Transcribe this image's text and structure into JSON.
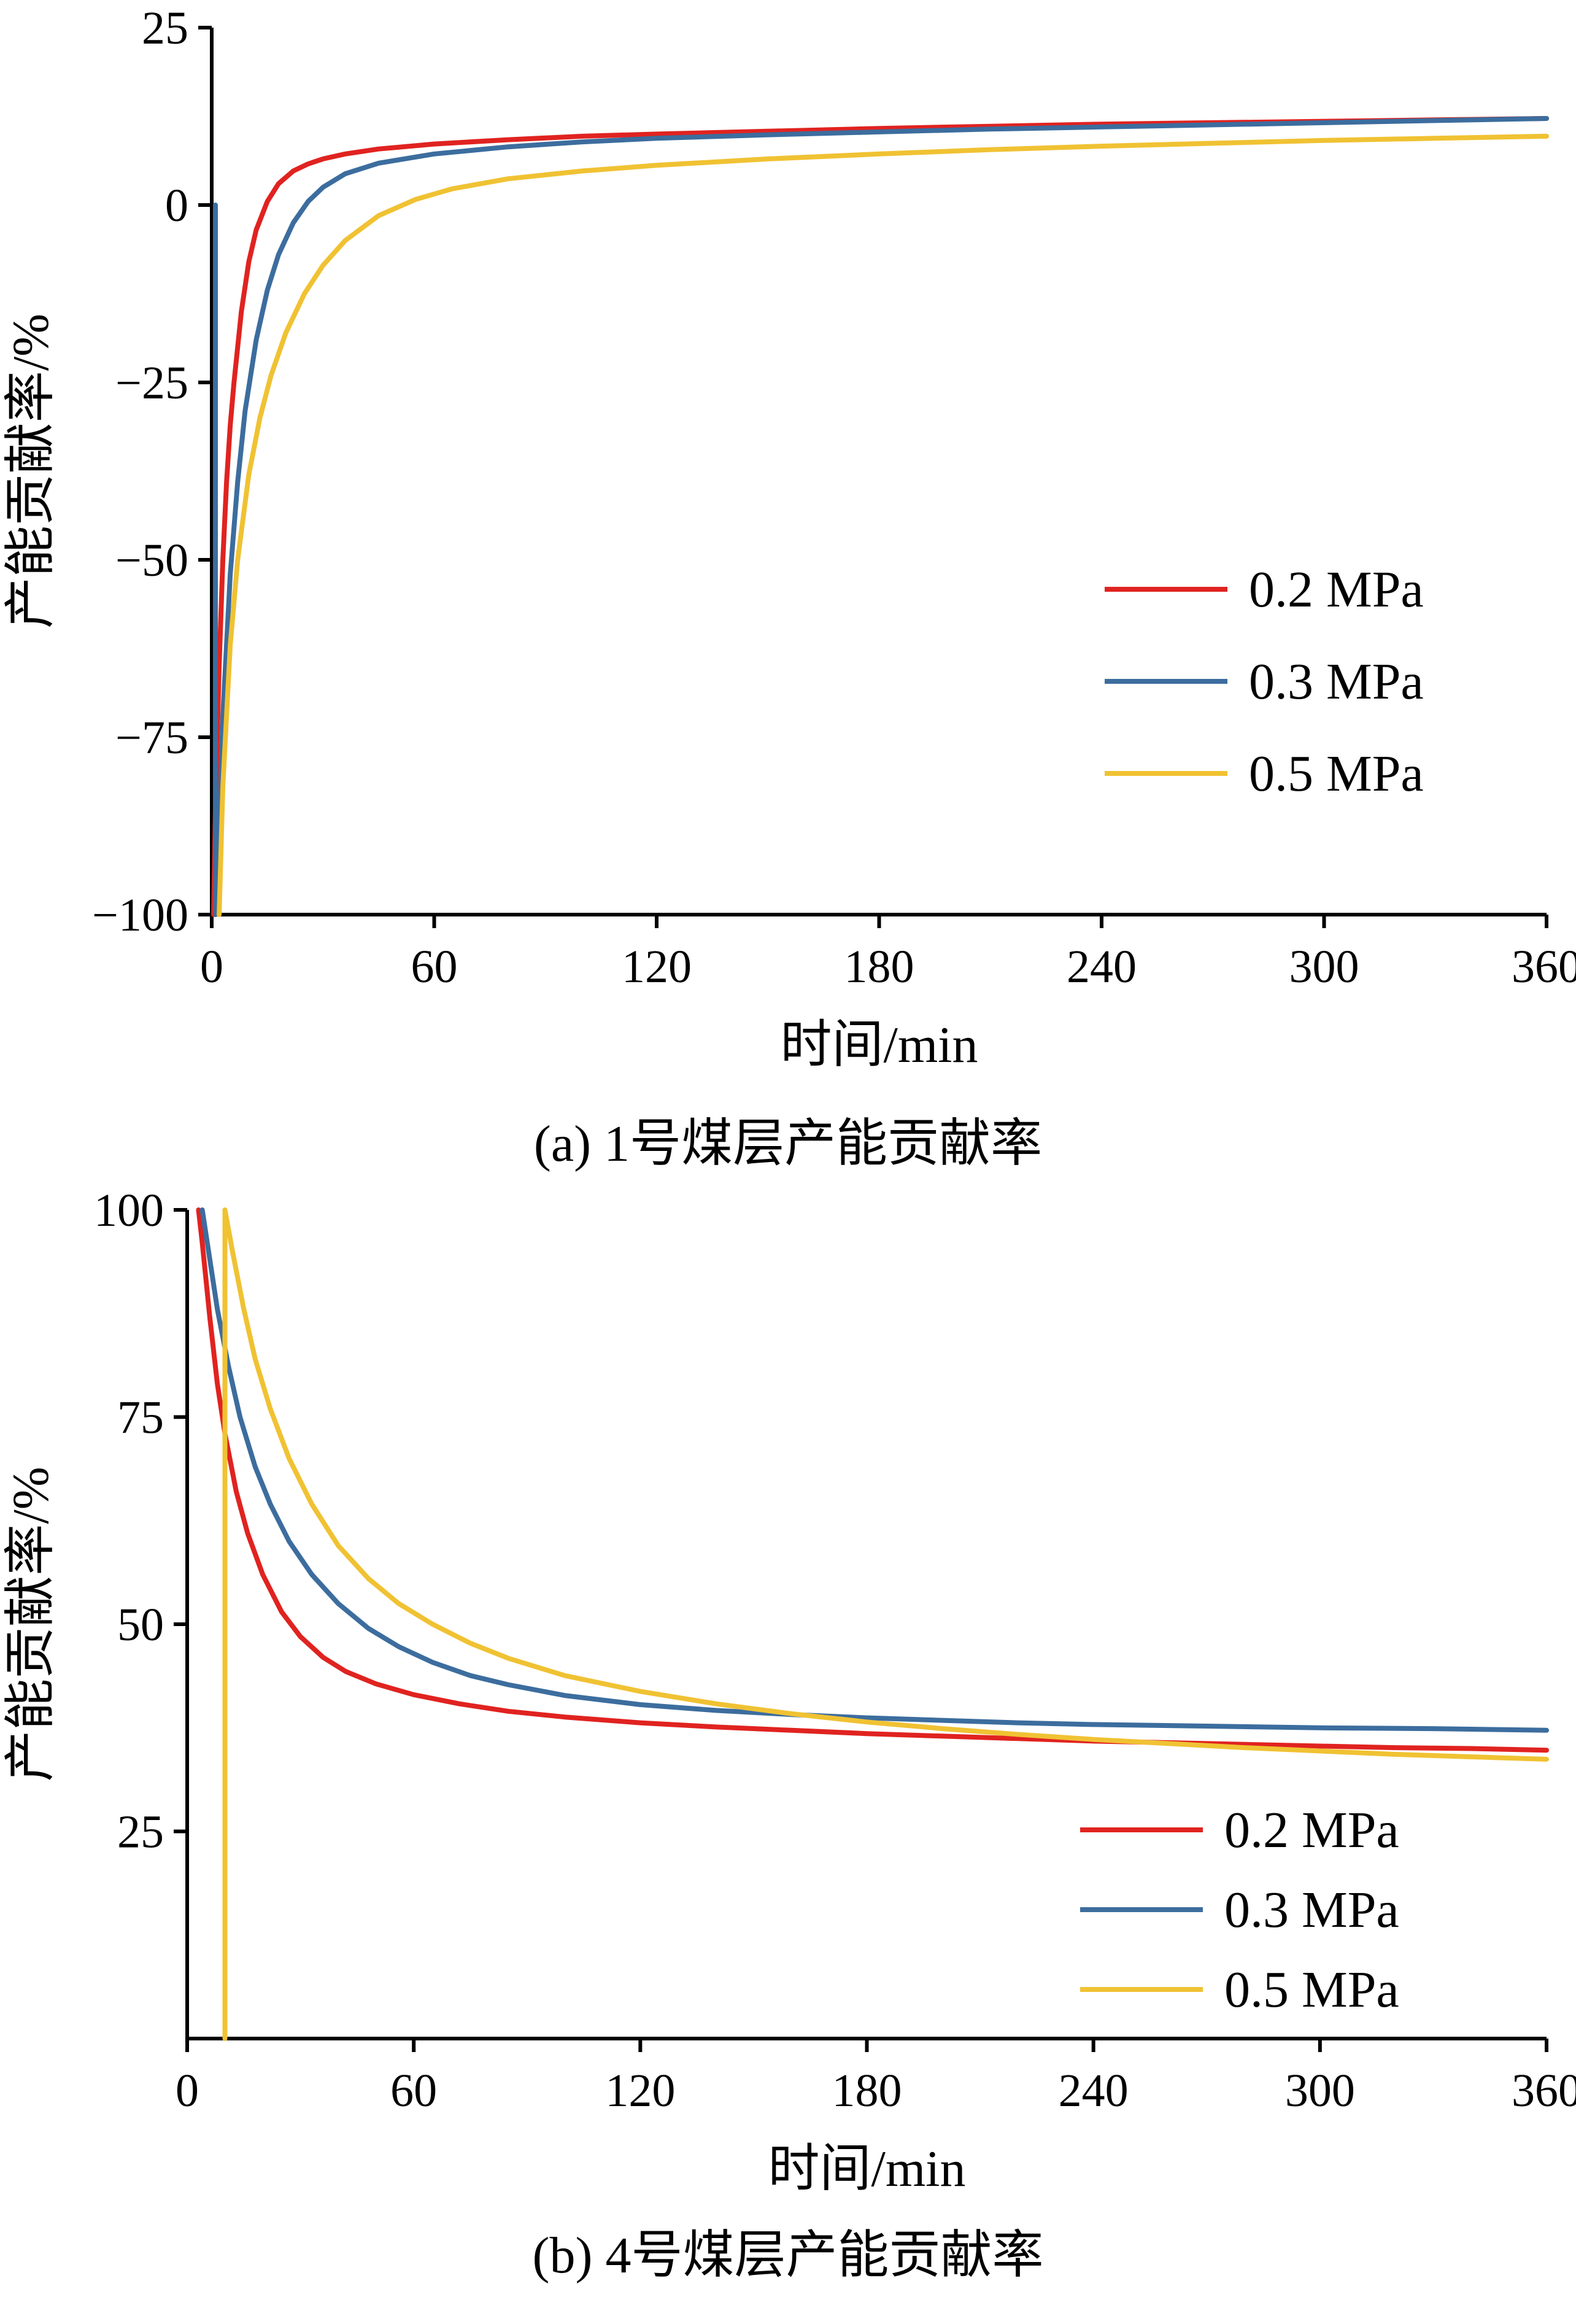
{
  "page": {
    "background": "#ffffff"
  },
  "chart_data": [
    {
      "type": "line",
      "id": "a",
      "caption": "(a) 1号煤层产能贡献率",
      "xlabel": "时间/min",
      "ylabel": "产能贡献率/%",
      "xlim": [
        0,
        360
      ],
      "ylim": [
        -100,
        25
      ],
      "xticks": [
        0,
        60,
        120,
        180,
        240,
        300,
        360
      ],
      "yticks": [
        -100,
        -75,
        -50,
        -25,
        0,
        25
      ],
      "grid": false,
      "legend_position": "right-center",
      "series": [
        {
          "name": "0.2 MPa",
          "color": "#e02320",
          "points": [
            [
              0.5,
              -100
            ],
            [
              1,
              -85
            ],
            [
              2,
              -65
            ],
            [
              3,
              -50
            ],
            [
              4,
              -39
            ],
            [
              5,
              -31
            ],
            [
              6,
              -25
            ],
            [
              8,
              -15
            ],
            [
              10,
              -8
            ],
            [
              12,
              -3.5
            ],
            [
              15,
              0.5
            ],
            [
              18,
              3
            ],
            [
              22,
              4.8
            ],
            [
              26,
              5.8
            ],
            [
              30,
              6.5
            ],
            [
              36,
              7.2
            ],
            [
              45,
              7.9
            ],
            [
              60,
              8.6
            ],
            [
              80,
              9.2
            ],
            [
              100,
              9.7
            ],
            [
              120,
              10.0
            ],
            [
              150,
              10.4
            ],
            [
              180,
              10.8
            ],
            [
              210,
              11.1
            ],
            [
              240,
              11.4
            ],
            [
              270,
              11.6
            ],
            [
              300,
              11.8
            ],
            [
              330,
              12.0
            ],
            [
              360,
              12.2
            ]
          ]
        },
        {
          "name": "0.3 MPa",
          "color": "#3c6d9e",
          "points": [
            [
              1,
              0
            ],
            [
              1,
              -100
            ],
            [
              1.5,
              -97
            ],
            [
              3,
              -72
            ],
            [
              5,
              -52
            ],
            [
              7,
              -39
            ],
            [
              9,
              -29
            ],
            [
              12,
              -19
            ],
            [
              15,
              -12
            ],
            [
              18,
              -7
            ],
            [
              22,
              -2.5
            ],
            [
              26,
              0.5
            ],
            [
              30,
              2.5
            ],
            [
              36,
              4.4
            ],
            [
              45,
              5.9
            ],
            [
              60,
              7.2
            ],
            [
              80,
              8.2
            ],
            [
              100,
              8.9
            ],
            [
              120,
              9.4
            ],
            [
              150,
              9.9
            ],
            [
              180,
              10.3
            ],
            [
              210,
              10.7
            ],
            [
              240,
              11.0
            ],
            [
              270,
              11.3
            ],
            [
              300,
              11.6
            ],
            [
              330,
              11.9
            ],
            [
              360,
              12.2
            ]
          ]
        },
        {
          "name": "0.5 MPa",
          "color": "#f0c233",
          "points": [
            [
              2,
              -100
            ],
            [
              3,
              -82
            ],
            [
              5,
              -62
            ],
            [
              7,
              -50
            ],
            [
              10,
              -38
            ],
            [
              13,
              -30
            ],
            [
              16,
              -24
            ],
            [
              20,
              -18
            ],
            [
              25,
              -12.5
            ],
            [
              30,
              -8.5
            ],
            [
              36,
              -5
            ],
            [
              45,
              -1.5
            ],
            [
              55,
              0.8
            ],
            [
              65,
              2.3
            ],
            [
              80,
              3.7
            ],
            [
              100,
              4.8
            ],
            [
              120,
              5.6
            ],
            [
              150,
              6.5
            ],
            [
              180,
              7.2
            ],
            [
              210,
              7.8
            ],
            [
              240,
              8.3
            ],
            [
              270,
              8.7
            ],
            [
              300,
              9.1
            ],
            [
              330,
              9.4
            ],
            [
              360,
              9.7
            ]
          ]
        }
      ]
    },
    {
      "type": "line",
      "id": "b",
      "caption": "(b) 4号煤层产能贡献率",
      "xlabel": "时间/min",
      "ylabel": "产能贡献率/%",
      "xlim": [
        0,
        360
      ],
      "ylim": [
        0,
        100
      ],
      "xticks": [
        0,
        60,
        120,
        180,
        240,
        300,
        360
      ],
      "yticks": [
        25,
        50,
        75,
        100
      ],
      "grid": false,
      "legend_position": "lower-right",
      "series": [
        {
          "name": "0.2 MPa",
          "color": "#e02320",
          "points": [
            [
              3,
              100
            ],
            [
              4,
              96
            ],
            [
              6,
              87
            ],
            [
              8,
              79
            ],
            [
              10,
              73
            ],
            [
              13,
              66
            ],
            [
              16,
              61
            ],
            [
              20,
              56
            ],
            [
              25,
              51.5
            ],
            [
              30,
              48.5
            ],
            [
              36,
              46
            ],
            [
              42,
              44.3
            ],
            [
              50,
              42.8
            ],
            [
              60,
              41.5
            ],
            [
              72,
              40.4
            ],
            [
              85,
              39.5
            ],
            [
              100,
              38.8
            ],
            [
              120,
              38.1
            ],
            [
              140,
              37.6
            ],
            [
              160,
              37.2
            ],
            [
              180,
              36.8
            ],
            [
              200,
              36.5
            ],
            [
              220,
              36.2
            ],
            [
              240,
              35.9
            ],
            [
              260,
              35.7
            ],
            [
              280,
              35.5
            ],
            [
              300,
              35.3
            ],
            [
              320,
              35.1
            ],
            [
              340,
              35.0
            ],
            [
              360,
              34.8
            ]
          ]
        },
        {
          "name": "0.3 MPa",
          "color": "#3c6d9e",
          "points": [
            [
              4,
              100
            ],
            [
              6,
              94
            ],
            [
              8,
              88
            ],
            [
              11,
              81
            ],
            [
              14,
              75
            ],
            [
              18,
              69
            ],
            [
              22,
              64.5
            ],
            [
              27,
              60
            ],
            [
              33,
              56
            ],
            [
              40,
              52.5
            ],
            [
              48,
              49.5
            ],
            [
              56,
              47.3
            ],
            [
              65,
              45.4
            ],
            [
              75,
              43.8
            ],
            [
              85,
              42.7
            ],
            [
              100,
              41.4
            ],
            [
              120,
              40.3
            ],
            [
              140,
              39.6
            ],
            [
              160,
              39.1
            ],
            [
              180,
              38.7
            ],
            [
              200,
              38.4
            ],
            [
              220,
              38.1
            ],
            [
              240,
              37.9
            ],
            [
              270,
              37.7
            ],
            [
              300,
              37.5
            ],
            [
              330,
              37.4
            ],
            [
              360,
              37.2
            ]
          ]
        },
        {
          "name": "0.5 MPa",
          "color": "#f0c233",
          "points": [
            [
              10,
              0
            ],
            [
              10,
              100
            ],
            [
              12,
              95
            ],
            [
              15,
              88
            ],
            [
              18,
              82
            ],
            [
              22,
              76
            ],
            [
              27,
              70
            ],
            [
              33,
              64.5
            ],
            [
              40,
              59.5
            ],
            [
              48,
              55.5
            ],
            [
              56,
              52.5
            ],
            [
              65,
              50
            ],
            [
              75,
              47.7
            ],
            [
              85,
              45.9
            ],
            [
              100,
              43.8
            ],
            [
              120,
              41.9
            ],
            [
              140,
              40.4
            ],
            [
              160,
              39.2
            ],
            [
              180,
              38.2
            ],
            [
              200,
              37.4
            ],
            [
              220,
              36.7
            ],
            [
              240,
              36.1
            ],
            [
              260,
              35.6
            ],
            [
              280,
              35.1
            ],
            [
              300,
              34.7
            ],
            [
              320,
              34.3
            ],
            [
              340,
              34.0
            ],
            [
              360,
              33.7
            ]
          ]
        }
      ]
    }
  ]
}
